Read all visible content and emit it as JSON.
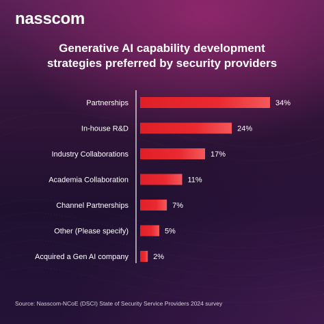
{
  "brand": {
    "logo_text": "nasscom"
  },
  "chart_data": {
    "type": "bar",
    "orientation": "horizontal",
    "title_lines": [
      "Generative AI capability development",
      "strategies preferred by security providers"
    ],
    "categories": [
      "Partnerships",
      "In-house R&D",
      "Industry Collaborations",
      "Academia Collaboration",
      "Channel Partnerships",
      "Other (Please specify)",
      "Acquired a Gen AI company"
    ],
    "values": [
      34,
      24,
      17,
      11,
      7,
      5,
      2
    ],
    "value_labels": [
      "34%",
      "24%",
      "17%",
      "11%",
      "7%",
      "5%",
      "2%"
    ],
    "unit": "%",
    "xlim": [
      0,
      34
    ],
    "bar_color": "#e8232a",
    "grid": false,
    "legend": "none"
  },
  "footer": {
    "source": "Source: Nasscom-NCoE (DSCI) State of Security Service Providers 2024 survey"
  }
}
